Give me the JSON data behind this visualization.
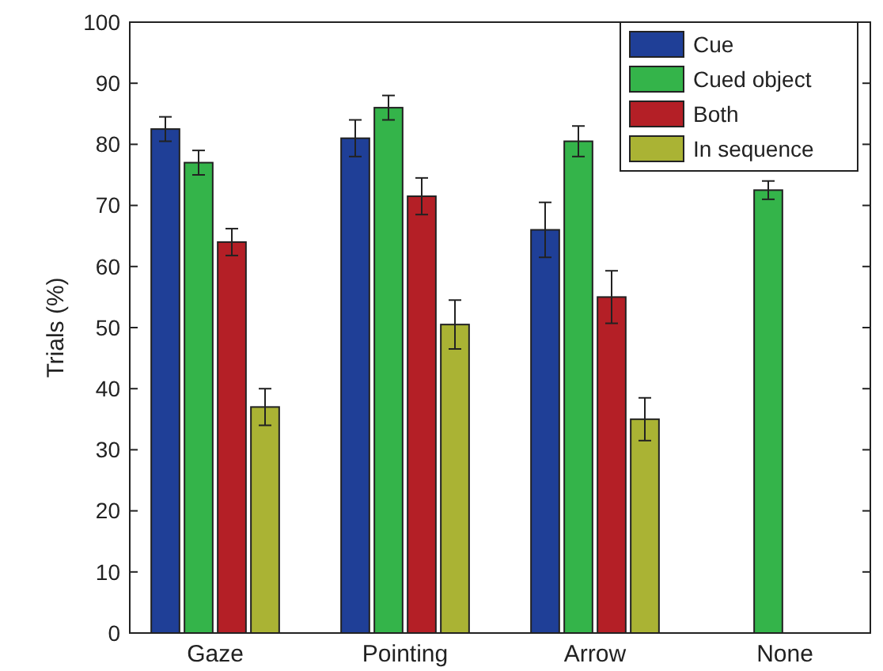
{
  "chart_data": {
    "type": "bar",
    "ylabel": "Trials (%)",
    "categories": [
      "Gaze",
      "Pointing",
      "Arrow",
      "None"
    ],
    "series": [
      {
        "name": "Cue",
        "color": "#1f3f97",
        "values": [
          82.5,
          81,
          66,
          null
        ],
        "errors": [
          2,
          3,
          4.5,
          null
        ]
      },
      {
        "name": "Cued object",
        "color": "#34b44a",
        "values": [
          77,
          86,
          80.5,
          72.5
        ],
        "errors": [
          2,
          2,
          2.5,
          1.5
        ]
      },
      {
        "name": "Both",
        "color": "#b41f26",
        "values": [
          64,
          71.5,
          55,
          null
        ],
        "errors": [
          2.2,
          3,
          4.3,
          null
        ]
      },
      {
        "name": "In sequence",
        "color": "#aab334",
        "values": [
          37,
          50.5,
          35,
          null
        ],
        "errors": [
          3,
          4,
          3.5,
          null
        ]
      }
    ],
    "ylim": [
      0,
      100
    ],
    "yticks": [
      0,
      10,
      20,
      30,
      40,
      50,
      60,
      70,
      80,
      90,
      100
    ],
    "legend": "top right"
  }
}
